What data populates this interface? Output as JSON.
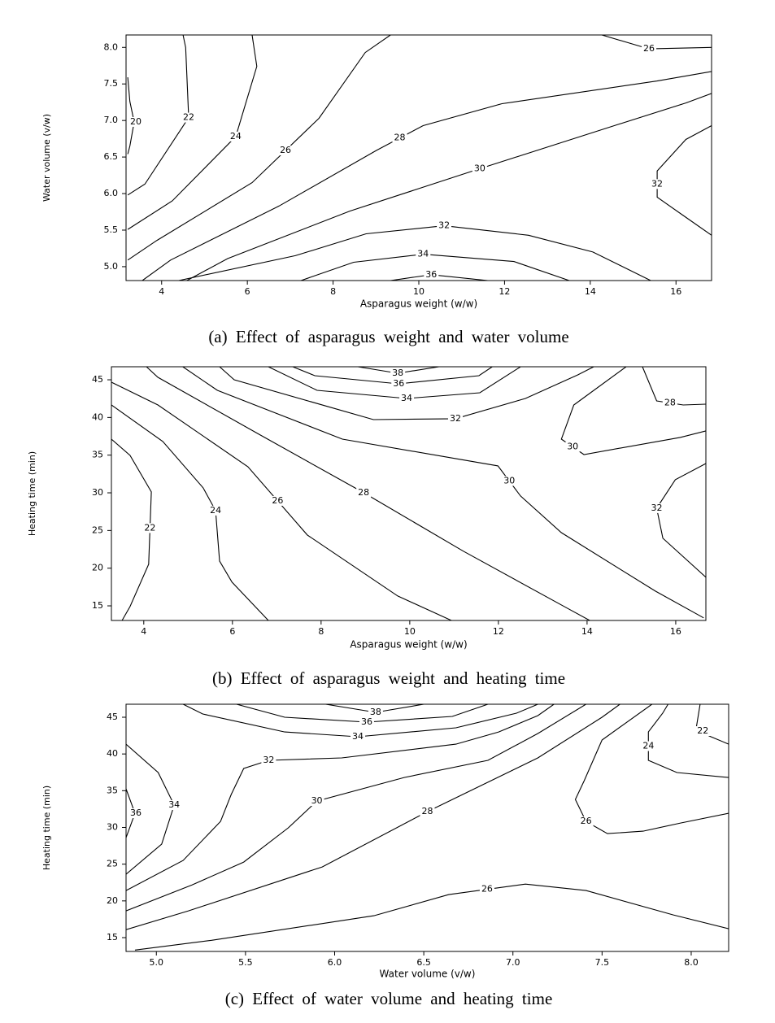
{
  "chart_data": [
    {
      "type": "contour",
      "title": "(a)  Effect of asparagus weight and water volume",
      "xlabel": "Asparagus weight (w/w)",
      "ylabel": "Water volume (v/w)",
      "color": "#000000",
      "xlim": [
        3.17,
        16.83
      ],
      "ylim": [
        4.81,
        8.17
      ],
      "xticks": [
        4,
        6,
        8,
        10,
        12,
        14,
        16
      ],
      "yticks": [
        {
          "value": 5,
          "label": "5.0"
        },
        5.5,
        {
          "value": 6,
          "label": "6.0"
        },
        6.5,
        {
          "value": 7,
          "label": "7.0"
        },
        7.5,
        {
          "value": 8,
          "label": "8.0"
        }
      ],
      "contours": [
        {
          "level": 20,
          "x": [
            3.21,
            3.26,
            3.36,
            3.26,
            3.21
          ],
          "y": [
            7.59,
            7.26,
            6.98,
            6.65,
            6.54
          ]
        },
        {
          "level": 22,
          "x": [
            4.5,
            4.56,
            4.63,
            3.61,
            3.21
          ],
          "y": [
            8.17,
            8.0,
            7.04,
            6.13,
            5.98
          ]
        },
        {
          "level": 24,
          "x": [
            6.11,
            6.22,
            5.73,
            4.25,
            3.21
          ],
          "y": [
            8.17,
            7.74,
            6.78,
            5.9,
            5.51
          ]
        },
        {
          "level": 26,
          "x": [
            9.34,
            8.75,
            7.67,
            6.11,
            3.89,
            3.21
          ],
          "y": [
            8.17,
            7.93,
            7.03,
            6.15,
            5.36,
            5.09
          ]
        },
        {
          "level": 26,
          "x": [
            14.27,
            15.37,
            16.83
          ],
          "y": [
            8.17,
            7.98,
            8.0
          ]
        },
        {
          "level": 28,
          "x": [
            16.83,
            15.56,
            11.94,
            10.1,
            9.01,
            6.74,
            4.21,
            3.55
          ],
          "y": [
            7.67,
            7.54,
            7.23,
            6.93,
            6.59,
            5.83,
            5.09,
            4.81
          ]
        },
        {
          "level": 30,
          "x": [
            16.83,
            16.23,
            14.56,
            11.42,
            8.39,
            5.54,
            4.59
          ],
          "y": [
            7.37,
            7.24,
            6.93,
            6.34,
            5.76,
            5.11,
            4.81
          ]
        },
        {
          "level": 32,
          "x": [
            16.83,
            16.23,
            15.56,
            15.56,
            16.17,
            16.83
          ],
          "y": [
            6.93,
            6.74,
            6.31,
            5.95,
            5.7,
            5.43
          ]
        },
        {
          "level": 32,
          "x": [
            4.4,
            7.12,
            8.77,
            10.59,
            12.56,
            14.06,
            15.41
          ],
          "y": [
            4.81,
            5.15,
            5.45,
            5.56,
            5.43,
            5.2,
            4.81
          ]
        },
        {
          "level": 34,
          "x": [
            7.25,
            8.48,
            10.1,
            12.22,
            13.51
          ],
          "y": [
            4.81,
            5.06,
            5.17,
            5.07,
            4.81
          ]
        },
        {
          "level": 36,
          "x": [
            9.34,
            10.29,
            11.61
          ],
          "y": [
            4.81,
            4.89,
            4.81
          ]
        }
      ]
    },
    {
      "type": "contour",
      "title": "(b)  Effect of asparagus weight and heating time",
      "xlabel": "Asparagus weight (w/w)",
      "ylabel": "Heating time (min)",
      "color": "#000000",
      "xlim": [
        3.27,
        16.68
      ],
      "ylim": [
        13.06,
        46.73
      ],
      "xticks": [
        4,
        6,
        8,
        10,
        12,
        14,
        16
      ],
      "yticks": [
        15,
        20,
        25,
        30,
        35,
        40,
        45
      ],
      "contours": [
        {
          "level": 22,
          "x": [
            3.27,
            3.69,
            4.17,
            4.11,
            3.69,
            3.51
          ],
          "y": [
            37.13,
            34.97,
            30.12,
            20.52,
            14.91,
            13.06
          ]
        },
        {
          "level": 24,
          "x": [
            3.27,
            4.43,
            5.34,
            5.62,
            5.71,
            5.99,
            6.81
          ],
          "y": [
            41.66,
            36.81,
            30.66,
            27.64,
            20.95,
            18.14,
            13.06
          ]
        },
        {
          "level": 26,
          "x": [
            3.27,
            4.32,
            6.35,
            7.69,
            9.73,
            10.94
          ],
          "y": [
            44.68,
            41.66,
            33.46,
            24.4,
            16.31,
            13.06
          ]
        },
        {
          "level": 28,
          "x": [
            4.06,
            4.32,
            6.63,
            8.96,
            11.21,
            13.55,
            14.06
          ],
          "y": [
            46.73,
            45.33,
            37.67,
            30.01,
            22.25,
            14.7,
            13.06
          ]
        },
        {
          "level": 30,
          "x": [
            4.88,
            5.66,
            8.48,
            11.99,
            12.5,
            13.42,
            15.54,
            16.63
          ],
          "y": [
            46.73,
            43.6,
            37.13,
            33.57,
            29.58,
            24.72,
            16.96,
            13.4
          ]
        },
        {
          "level": 32,
          "x": [
            5.71,
            6.04,
            9.18,
            11.03,
            12.61,
            13.79,
            14.15
          ],
          "y": [
            46.73,
            45.0,
            39.72,
            39.83,
            42.52,
            45.65,
            46.73
          ]
        },
        {
          "level": 34,
          "x": [
            6.81,
            7.91,
            9.93,
            11.58,
            12.5
          ],
          "y": [
            46.73,
            43.6,
            42.52,
            43.28,
            46.73
          ]
        },
        {
          "level": 36,
          "x": [
            7.36,
            7.86,
            9.75,
            11.56,
            11.86
          ],
          "y": [
            46.73,
            45.54,
            44.46,
            45.54,
            46.73
          ]
        },
        {
          "level": 38,
          "x": [
            8.83,
            9.73,
            10.66
          ],
          "y": [
            46.73,
            45.87,
            46.73
          ]
        },
        {
          "level": 30,
          "x": [
            14.88,
            13.7,
            13.42,
            13.93,
            16.1,
            16.68
          ],
          "y": [
            46.73,
            41.66,
            37.13,
            35.08,
            37.35,
            38.21
          ]
        },
        {
          "level": 28,
          "x": [
            15.25,
            15.57,
            16.17,
            16.68
          ],
          "y": [
            46.73,
            42.2,
            41.66,
            41.77
          ]
        },
        {
          "level": 32,
          "x": [
            16.68,
            15.99,
            15.57,
            15.71,
            16.68
          ],
          "y": [
            33.89,
            31.74,
            27.96,
            23.97,
            18.79
          ]
        }
      ]
    },
    {
      "type": "contour",
      "title": "(c)  Effect of water volume and heating time",
      "xlabel": "Water volume (v/w)",
      "ylabel": "Heating time (min)",
      "color": "#000000",
      "xlim": [
        4.83,
        8.21
      ],
      "ylim": [
        13.12,
        46.77
      ],
      "xticks": [
        {
          "value": 5,
          "label": "5.0"
        },
        5.5,
        {
          "value": 6,
          "label": "6.0"
        },
        6.5,
        {
          "value": 7,
          "label": "7.0"
        },
        7.5,
        {
          "value": 8,
          "label": "8.0"
        }
      ],
      "yticks": [
        15,
        20,
        25,
        30,
        35,
        40,
        45
      ],
      "contours": [
        {
          "level": 34,
          "x": [
            4.83,
            5.01,
            5.1,
            5.03,
            4.83
          ],
          "y": [
            41.34,
            37.47,
            33.04,
            27.72,
            23.62
          ]
        },
        {
          "level": 36,
          "x": [
            4.83,
            4.88,
            4.83
          ],
          "y": [
            35.25,
            31.93,
            28.61
          ]
        },
        {
          "level": 32,
          "x": [
            4.83,
            5.15,
            5.36,
            5.42,
            5.49,
            5.63,
            6.04,
            6.68,
            6.92,
            7.14,
            7.23
          ],
          "y": [
            21.41,
            25.51,
            30.82,
            34.48,
            38.02,
            39.13,
            39.46,
            41.34,
            43.0,
            45.22,
            46.77
          ]
        },
        {
          "level": 30,
          "x": [
            4.83,
            5.2,
            5.49,
            5.74,
            5.9,
            6.39,
            6.86,
            7.14,
            7.41
          ],
          "y": [
            18.64,
            22.18,
            25.29,
            29.94,
            33.59,
            36.8,
            39.13,
            42.78,
            46.77
          ]
        },
        {
          "level": 28,
          "x": [
            4.83,
            5.18,
            5.93,
            6.52,
            7.14,
            7.5,
            7.6
          ],
          "y": [
            16.09,
            18.64,
            24.62,
            32.15,
            39.46,
            45.0,
            46.77
          ]
        },
        {
          "level": 26,
          "x": [
            4.88,
            5.31,
            6.22,
            6.64,
            7.07,
            7.41,
            7.9,
            8.21
          ],
          "y": [
            13.31,
            14.64,
            17.98,
            20.86,
            22.29,
            21.41,
            18.09,
            16.21
          ]
        },
        {
          "level": 34,
          "x": [
            5.15,
            5.26,
            5.72,
            6.13,
            6.68,
            7.02,
            7.14
          ],
          "y": [
            46.77,
            45.44,
            43.0,
            42.34,
            43.56,
            45.55,
            46.77
          ]
        },
        {
          "level": 36,
          "x": [
            5.45,
            5.72,
            6.18,
            6.66,
            6.86
          ],
          "y": [
            46.77,
            45.0,
            44.33,
            45.11,
            46.77
          ]
        },
        {
          "level": 38,
          "x": [
            5.95,
            6.23,
            6.5
          ],
          "y": [
            46.77,
            45.66,
            46.77
          ]
        },
        {
          "level": 26,
          "x": [
            7.78,
            7.5,
            7.4,
            7.35,
            7.41,
            7.53,
            7.73,
            7.94,
            8.21
          ],
          "y": [
            46.77,
            41.9,
            36.36,
            33.81,
            30.82,
            29.16,
            29.49,
            30.6,
            31.93
          ]
        },
        {
          "level": 24,
          "x": [
            7.87,
            7.84,
            7.76,
            7.76,
            7.92,
            8.21
          ],
          "y": [
            46.77,
            45.55,
            43.0,
            39.13,
            37.47,
            36.8
          ]
        },
        {
          "level": 22,
          "x": [
            8.05,
            8.03,
            8.1,
            8.21
          ],
          "y": [
            46.77,
            43.78,
            42.45,
            41.34
          ]
        }
      ]
    }
  ]
}
